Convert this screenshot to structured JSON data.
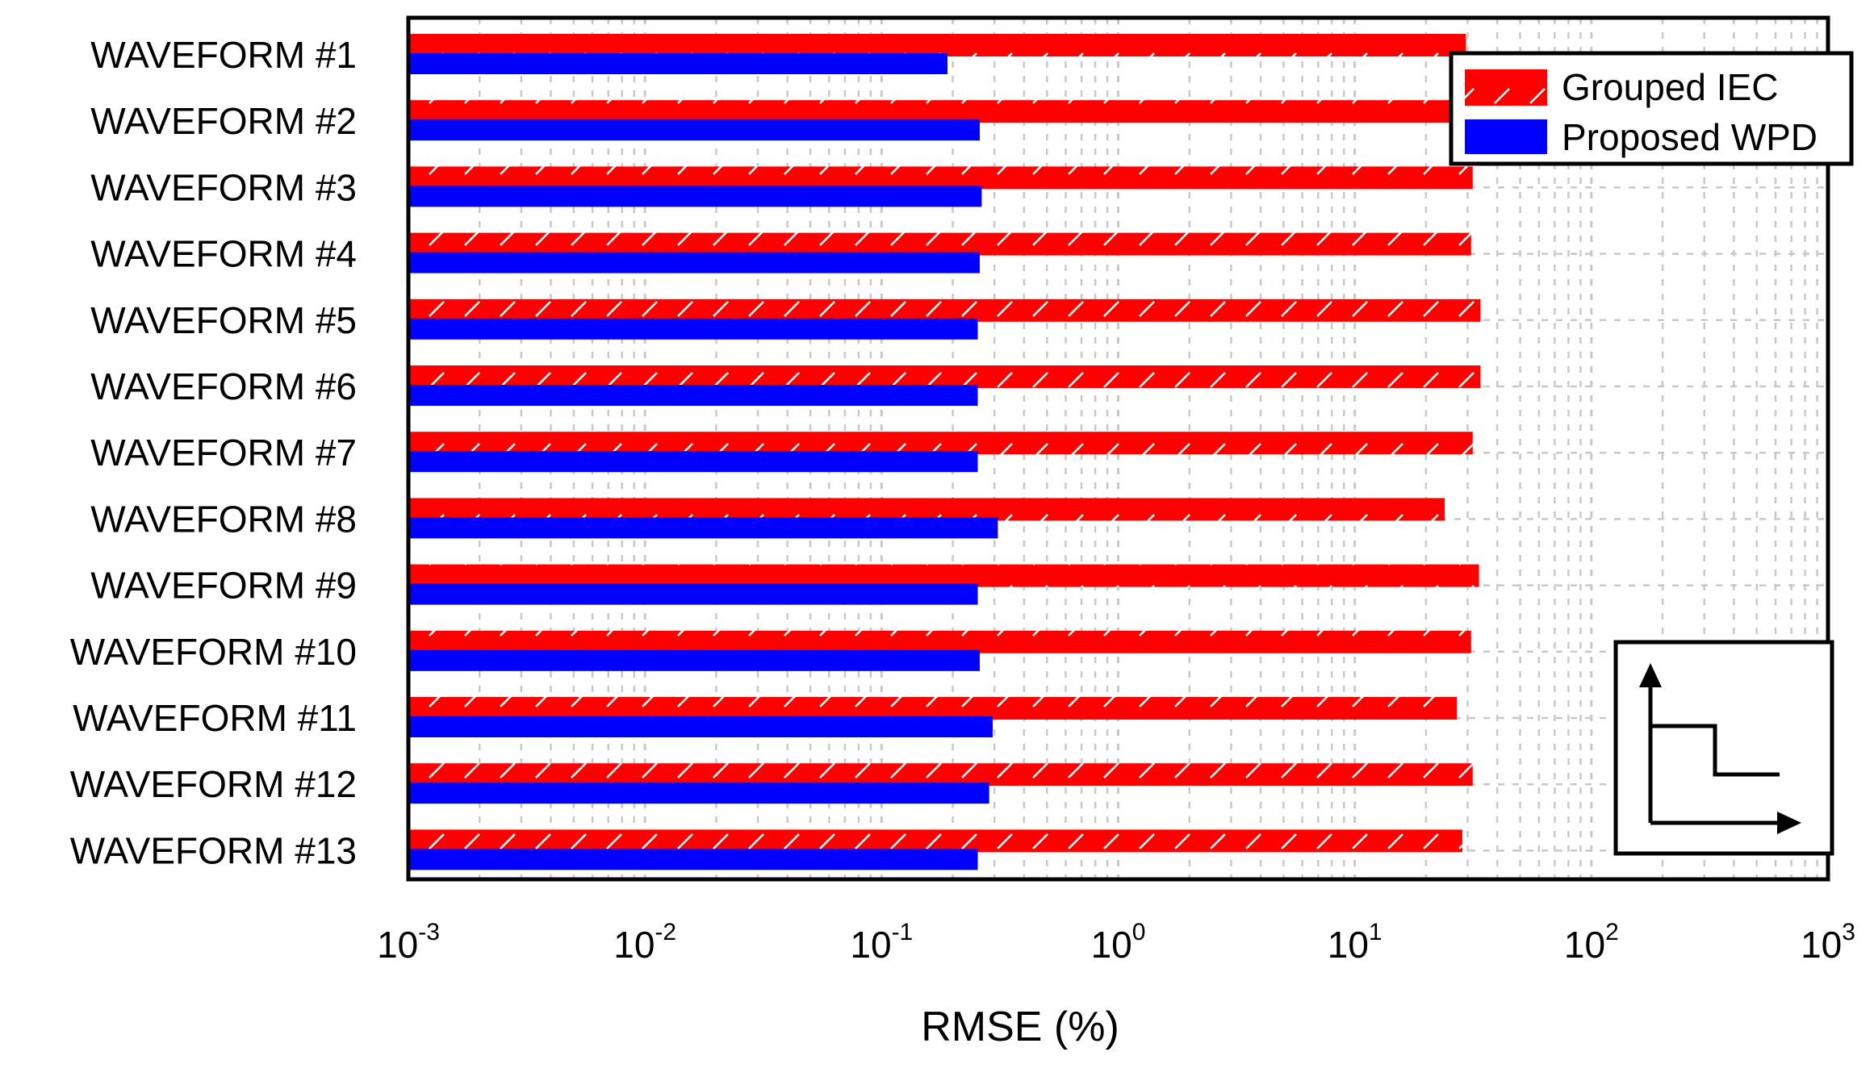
{
  "chart_data": {
    "type": "bar",
    "orientation": "horizontal",
    "x_scale": "log",
    "xlim": [
      0.001,
      1000
    ],
    "xlabel": "RMSE (%)",
    "ylabel": "",
    "title": "",
    "grid": true,
    "legend_position": "top-right",
    "x_ticks": [
      {
        "base": "10",
        "exp": "-3"
      },
      {
        "base": "10",
        "exp": "-2"
      },
      {
        "base": "10",
        "exp": "-1"
      },
      {
        "base": "10",
        "exp": "0"
      },
      {
        "base": "10",
        "exp": "1"
      },
      {
        "base": "10",
        "exp": "2"
      },
      {
        "base": "10",
        "exp": "3"
      }
    ],
    "categories": [
      "WAVEFORM #1",
      "WAVEFORM #2",
      "WAVEFORM #3",
      "WAVEFORM #4",
      "WAVEFORM #5",
      "WAVEFORM #6",
      "WAVEFORM #7",
      "WAVEFORM #8",
      "WAVEFORM #9",
      "WAVEFORM #10",
      "WAVEFORM #11",
      "WAVEFORM #12",
      "WAVEFORM #13"
    ],
    "series": [
      {
        "name": "Grouped IEC",
        "color": "#ff0000",
        "pattern": "hatched",
        "values": [
          29.5,
          27.5,
          31.5,
          31.0,
          34.0,
          34.0,
          31.5,
          24.0,
          33.5,
          31.0,
          27.0,
          31.5,
          28.5
        ]
      },
      {
        "name": "Proposed WPD",
        "color": "#0000ff",
        "pattern": "solid",
        "values": [
          0.19,
          0.26,
          0.265,
          0.26,
          0.255,
          0.255,
          0.255,
          0.31,
          0.255,
          0.26,
          0.295,
          0.285,
          0.255
        ]
      }
    ],
    "inset_icon": "step-waveform-icon"
  }
}
